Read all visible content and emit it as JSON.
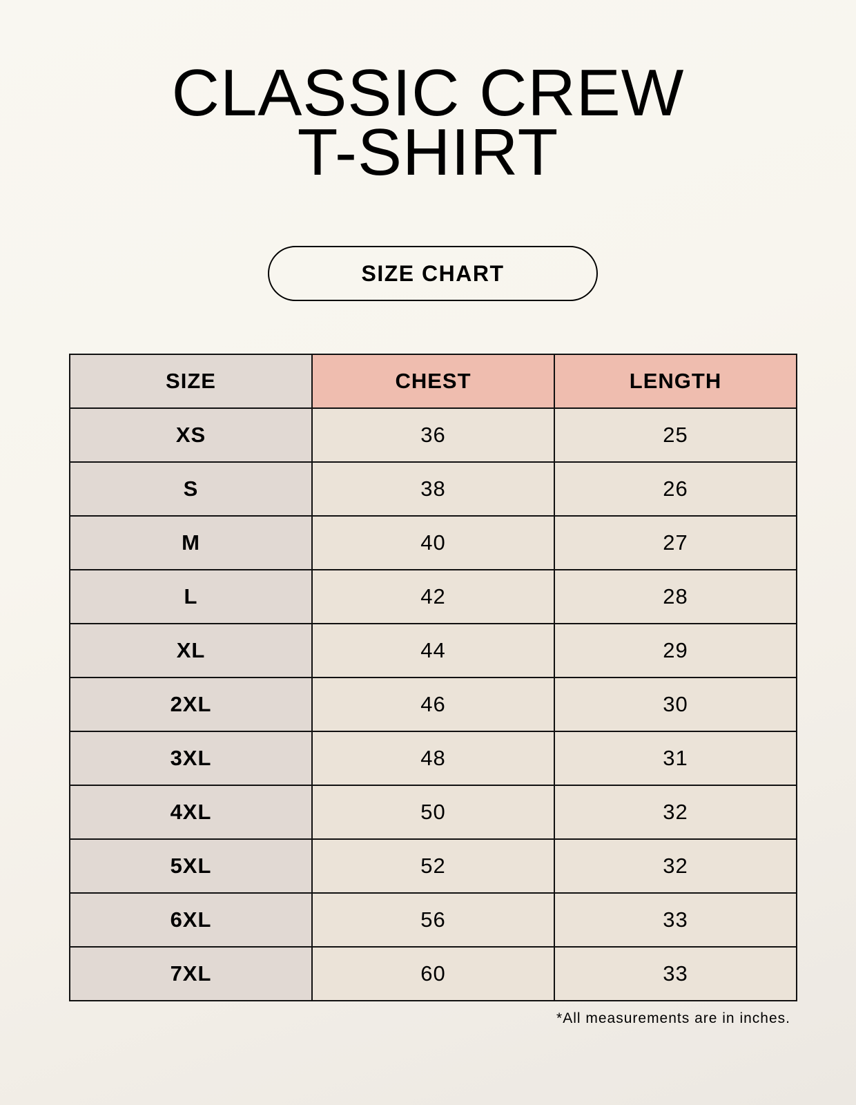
{
  "title": {
    "line1": "CLASSIC CREW",
    "line2": "T-SHIRT"
  },
  "subtitle_label": "SIZE CHART",
  "colors": {
    "size_column": "#e1d9d3",
    "header_accent": "#efbdaf",
    "value_cells": "#ebe3d8",
    "background": "#f9f7f1"
  },
  "table": {
    "headers": [
      "SIZE",
      "CHEST",
      "LENGTH"
    ],
    "rows": [
      [
        "XS",
        "36",
        "25"
      ],
      [
        "S",
        "38",
        "26"
      ],
      [
        "M",
        "40",
        "27"
      ],
      [
        "L",
        "42",
        "28"
      ],
      [
        "XL",
        "44",
        "29"
      ],
      [
        "2XL",
        "46",
        "30"
      ],
      [
        "3XL",
        "48",
        "31"
      ],
      [
        "4XL",
        "50",
        "32"
      ],
      [
        "5XL",
        "52",
        "32"
      ],
      [
        "6XL",
        "56",
        "33"
      ],
      [
        "7XL",
        "60",
        "33"
      ]
    ]
  },
  "footnote": "*All measurements are in inches."
}
